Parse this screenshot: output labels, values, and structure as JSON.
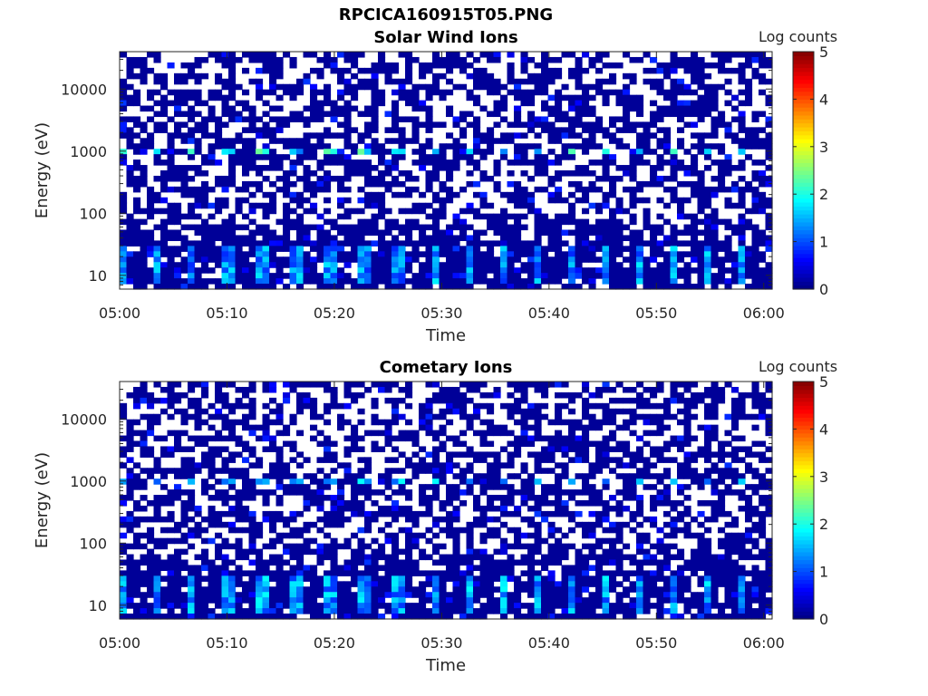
{
  "figure_title": "RPCICA160915T05.PNG",
  "chart_data": [
    {
      "type": "heatmap",
      "title": "Solar Wind Ions",
      "xlabel": "Time",
      "ylabel": "Energy (eV)",
      "x_ticks": [
        "05:00",
        "05:10",
        "05:20",
        "05:30",
        "05:40",
        "05:50",
        "06:00"
      ],
      "x_range": [
        "05:00",
        "06:00"
      ],
      "y_ticks": [
        "10",
        "100",
        "1000",
        "10000"
      ],
      "y_scale": "log",
      "y_range": [
        6,
        40000
      ],
      "colorbar_label": "Log counts",
      "colorbar_ticks": [
        "0",
        "1",
        "2",
        "3",
        "4",
        "5"
      ],
      "colorbar_range": [
        0,
        5
      ],
      "colormap": "jet",
      "grid": false,
      "periodic_peaks": {
        "period_seconds": 192,
        "energy_eV": [
          1000,
          15
        ],
        "peak_log_counts": [
          2.4,
          1.8
        ]
      }
    },
    {
      "type": "heatmap",
      "title": "Cometary Ions",
      "xlabel": "Time",
      "ylabel": "Energy (eV)",
      "x_ticks": [
        "05:00",
        "05:10",
        "05:20",
        "05:30",
        "05:40",
        "05:50",
        "06:00"
      ],
      "x_range": [
        "05:00",
        "06:00"
      ],
      "y_ticks": [
        "10",
        "100",
        "1000",
        "10000"
      ],
      "y_scale": "log",
      "y_range": [
        6,
        40000
      ],
      "colorbar_label": "Log counts",
      "colorbar_ticks": [
        "0",
        "1",
        "2",
        "3",
        "4",
        "5"
      ],
      "colorbar_range": [
        0,
        5
      ],
      "colormap": "jet",
      "grid": false,
      "periodic_peaks": {
        "period_seconds": 192,
        "energy_eV": [
          1000,
          15
        ],
        "peak_log_counts": [
          1.9,
          1.9
        ]
      }
    }
  ]
}
